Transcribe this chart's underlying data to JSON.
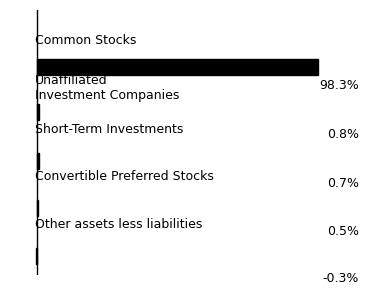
{
  "categories": [
    "Common Stocks",
    "Unaffiliated\nInvestment Companies",
    "Short-Term Investments",
    "Convertible Preferred Stocks",
    "Other assets less liabilities"
  ],
  "values": [
    98.3,
    0.8,
    0.7,
    0.5,
    -0.3
  ],
  "value_labels": [
    "98.3%",
    "0.8%",
    "0.7%",
    "0.5%",
    "-0.3%"
  ],
  "bar_color": "#000000",
  "background_color": "#ffffff",
  "label_fontsize": 9.0,
  "value_fontsize": 9.0
}
